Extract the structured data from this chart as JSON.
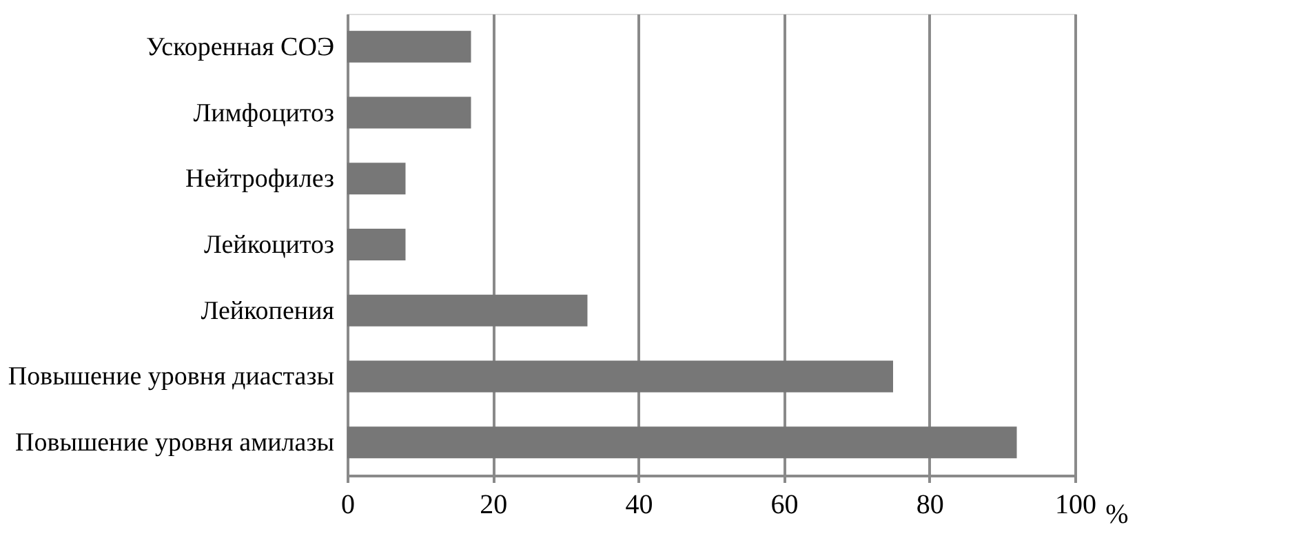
{
  "chart_data": {
    "type": "bar",
    "orientation": "horizontal",
    "xlabel": "%",
    "categories": [
      "Ускоренная СОЭ",
      "Лимфоцитоз",
      "Нейтрофилез",
      "Лейкоцитоз",
      "Лейкопения",
      "Повышение уровня диастазы",
      "Повышение уровня амилазы"
    ],
    "values": [
      17,
      17,
      8,
      8,
      33,
      75,
      92
    ],
    "color": "#777777",
    "xlim": [
      0,
      100
    ],
    "xticks": [
      0,
      20,
      40,
      60,
      80,
      100
    ],
    "grid": "x"
  }
}
